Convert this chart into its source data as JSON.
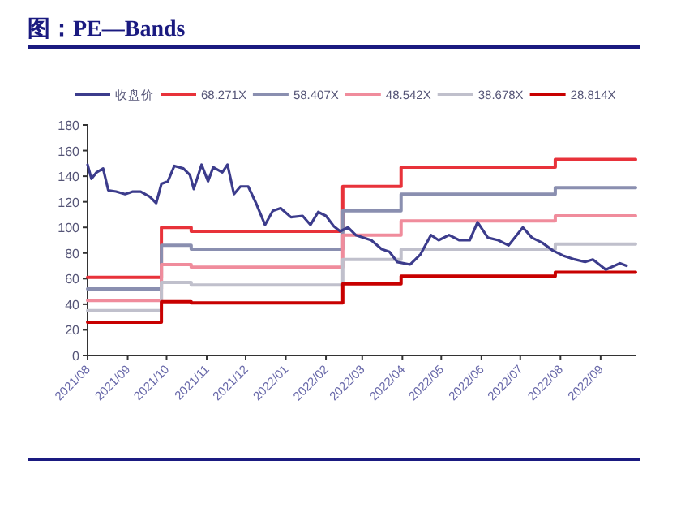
{
  "chart_data": {
    "type": "line",
    "title": "图：PE—Bands",
    "xlim": [
      "2021-08-01",
      "2022-09-28"
    ],
    "xticks": [
      {
        "value": "2021-08-01",
        "label": "2021/08"
      },
      {
        "value": "2021-09-01",
        "label": "2021/09"
      },
      {
        "value": "2021-10-01",
        "label": "2021/10"
      },
      {
        "value": "2021-11-01",
        "label": "2021/11"
      },
      {
        "value": "2021-12-01",
        "label": "2021/12"
      },
      {
        "value": "2022-01-01",
        "label": "2022/01"
      },
      {
        "value": "2022-02-01",
        "label": "2022/02"
      },
      {
        "value": "2022-03-01",
        "label": "2022/03"
      },
      {
        "value": "2022-04-01",
        "label": "2022/04"
      },
      {
        "value": "2022-05-01",
        "label": "2022/05"
      },
      {
        "value": "2022-06-01",
        "label": "2022/06"
      },
      {
        "value": "2022-07-01",
        "label": "2022/07"
      },
      {
        "value": "2022-08-01",
        "label": "2022/08"
      },
      {
        "value": "2022-09-01",
        "label": "2022/09"
      }
    ],
    "ylim": [
      0,
      180
    ],
    "yticks": [
      0,
      20,
      40,
      60,
      80,
      100,
      120,
      140,
      160,
      180
    ],
    "legend": "top",
    "grid": false,
    "series": [
      {
        "name": "收盘价",
        "color": "#3c3c8c",
        "x": [
          "2021-08-01",
          "2021-08-04",
          "2021-08-08",
          "2021-08-13",
          "2021-08-17",
          "2021-08-23",
          "2021-08-30",
          "2021-09-05",
          "2021-09-11",
          "2021-09-18",
          "2021-09-23",
          "2021-09-27",
          "2021-10-02",
          "2021-10-07",
          "2021-10-14",
          "2021-10-19",
          "2021-10-22",
          "2021-10-28",
          "2021-11-02",
          "2021-11-06",
          "2021-11-13",
          "2021-11-17",
          "2021-11-22",
          "2021-11-27",
          "2021-12-03",
          "2021-12-09",
          "2021-12-16",
          "2021-12-22",
          "2021-12-28",
          "2022-01-05",
          "2022-01-14",
          "2022-01-20",
          "2022-01-26",
          "2022-02-01",
          "2022-02-07",
          "2022-02-12",
          "2022-02-18",
          "2022-02-24",
          "2022-03-08",
          "2022-03-16",
          "2022-03-22",
          "2022-03-28",
          "2022-04-07",
          "2022-04-15",
          "2022-04-23",
          "2022-04-29",
          "2022-05-07",
          "2022-05-15",
          "2022-05-23",
          "2022-05-29",
          "2022-06-06",
          "2022-06-14",
          "2022-06-22",
          "2022-07-03",
          "2022-07-10",
          "2022-07-18",
          "2022-07-26",
          "2022-08-03",
          "2022-08-12",
          "2022-08-20",
          "2022-08-26",
          "2022-09-05",
          "2022-09-16",
          "2022-09-21"
        ],
        "values": [
          149,
          138,
          143,
          146,
          129,
          128,
          126,
          128,
          128,
          124,
          119,
          134,
          136,
          148,
          146,
          141,
          130,
          149,
          136,
          147,
          143,
          149,
          126,
          132,
          132,
          119,
          102,
          113,
          115,
          108,
          109,
          102,
          112,
          109,
          101,
          97,
          100,
          94,
          90,
          83,
          81,
          73,
          71,
          79,
          94,
          90,
          94,
          90,
          90,
          104,
          92,
          90,
          86,
          100,
          92,
          88,
          82,
          78,
          75,
          73,
          75,
          67,
          72,
          70
        ]
      },
      {
        "name": "68.271X",
        "color": "#e8323a",
        "type": "step",
        "x": [
          "2021-08-01",
          "2021-09-27",
          "2021-10-20",
          "2022-02-14",
          "2022-03-31",
          "2022-07-28",
          "2022-09-28"
        ],
        "values": [
          61,
          100,
          97,
          132,
          147,
          153,
          153
        ]
      },
      {
        "name": "58.407X",
        "color": "#8a8fb0",
        "type": "step",
        "x": [
          "2021-08-01",
          "2021-09-27",
          "2021-10-20",
          "2022-02-14",
          "2022-03-31",
          "2022-07-28",
          "2022-09-28"
        ],
        "values": [
          52,
          86,
          83,
          113,
          126,
          131,
          131
        ]
      },
      {
        "name": "48.542X",
        "color": "#f08c9c",
        "type": "step",
        "x": [
          "2021-08-01",
          "2021-09-27",
          "2021-10-20",
          "2022-02-14",
          "2022-03-31",
          "2022-07-28",
          "2022-09-28"
        ],
        "values": [
          43,
          71,
          69,
          94,
          105,
          109,
          109
        ]
      },
      {
        "name": "38.678X",
        "color": "#c0c0cc",
        "type": "step",
        "x": [
          "2021-08-01",
          "2021-09-27",
          "2021-10-20",
          "2022-02-14",
          "2022-03-31",
          "2022-07-28",
          "2022-09-28"
        ],
        "values": [
          35,
          57,
          55,
          75,
          83,
          87,
          87
        ]
      },
      {
        "name": "28.814X",
        "color": "#c80000",
        "type": "step",
        "x": [
          "2021-08-01",
          "2021-09-27",
          "2021-10-20",
          "2022-02-14",
          "2022-03-31",
          "2022-07-28",
          "2022-09-28"
        ],
        "values": [
          26,
          42,
          41,
          56,
          62,
          65,
          65
        ]
      }
    ]
  }
}
